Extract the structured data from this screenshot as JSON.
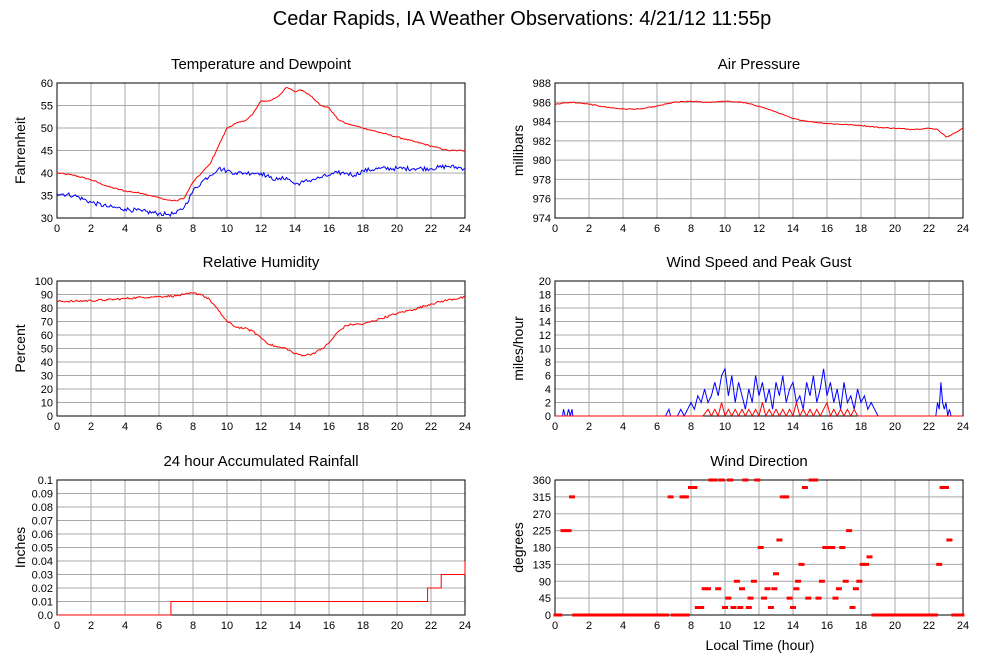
{
  "title": "Cedar Rapids, IA Weather Observations: 4/21/12 11:55p",
  "xlabel_bottom": "Local Time (hour)",
  "colors": {
    "red": "#ff0000",
    "blue": "#0000ff",
    "grid": "#a8a8a8",
    "frame": "#000000"
  },
  "chart_data": [
    {
      "id": "temp",
      "type": "line",
      "title": "Temperature and Dewpoint",
      "ylabel": "Fahrenheit",
      "xlim": [
        0,
        24
      ],
      "xticks": [
        0,
        2,
        4,
        6,
        8,
        10,
        12,
        14,
        16,
        18,
        20,
        22,
        24
      ],
      "ylim": [
        30,
        60
      ],
      "yticks": [
        30,
        35,
        40,
        45,
        50,
        55,
        60
      ],
      "series": [
        {
          "color": "#ff0000",
          "noise": 0.15,
          "x": [
            0,
            1,
            2,
            3,
            4,
            5,
            6,
            6.5,
            7,
            7.5,
            8,
            8.5,
            9,
            9.5,
            10,
            10.5,
            11,
            11.5,
            12,
            12.5,
            13,
            13.5,
            13.8,
            14,
            14.3,
            14.6,
            15,
            15.5,
            16,
            16.5,
            17,
            17.5,
            18,
            19,
            20,
            21,
            22,
            23,
            24
          ],
          "y": [
            40,
            39.5,
            38.5,
            37,
            36,
            35.5,
            34.5,
            34,
            33.8,
            34.5,
            38,
            40,
            42,
            46,
            50,
            51,
            51.5,
            53,
            56,
            56,
            57,
            59,
            58.5,
            58,
            58.5,
            58,
            57,
            55,
            54.5,
            52,
            51,
            50.5,
            50,
            49,
            48,
            47,
            46,
            45,
            45
          ]
        },
        {
          "color": "#0000ff",
          "noise": 0.5,
          "x": [
            0,
            1,
            2,
            3,
            4,
            5,
            6,
            6.5,
            7,
            7.5,
            8,
            8.5,
            9,
            9.5,
            10,
            10.5,
            11,
            11.5,
            12,
            12.5,
            13,
            13.5,
            14,
            14.5,
            15,
            15.5,
            16,
            16.5,
            17,
            17.5,
            18,
            19,
            20,
            21,
            22,
            23,
            24
          ],
          "y": [
            35.5,
            35,
            33.5,
            32.5,
            32,
            31.5,
            31,
            30.8,
            31,
            32.5,
            36,
            38,
            39.5,
            41,
            40.5,
            40,
            40,
            40,
            40,
            39,
            38.5,
            39,
            37.5,
            38,
            38.5,
            39,
            39.5,
            40,
            40,
            39.5,
            40.5,
            41,
            41,
            41,
            41,
            41.5,
            41
          ]
        }
      ]
    },
    {
      "id": "pressure",
      "type": "line",
      "title": "Air Pressure",
      "ylabel": "millibars",
      "xlim": [
        0,
        24
      ],
      "xticks": [
        0,
        2,
        4,
        6,
        8,
        10,
        12,
        14,
        16,
        18,
        20,
        22,
        24
      ],
      "ylim": [
        974,
        988
      ],
      "yticks": [
        974,
        976,
        978,
        980,
        982,
        984,
        986,
        988
      ],
      "series": [
        {
          "color": "#ff0000",
          "noise": 0.05,
          "x": [
            0,
            1,
            2,
            3,
            4,
            5,
            6,
            7,
            8,
            9,
            10,
            11,
            12,
            13,
            14,
            15,
            16,
            17,
            18,
            19,
            20,
            21,
            22,
            22.5,
            23,
            23.5,
            24
          ],
          "y": [
            985.8,
            986,
            985.8,
            985.5,
            985.3,
            985.3,
            985.6,
            986,
            986.1,
            986,
            986.1,
            986,
            985.6,
            985,
            984.3,
            984,
            983.8,
            983.7,
            983.6,
            983.4,
            983.3,
            983.2,
            983.3,
            983.2,
            982.4,
            982.8,
            983.3
          ]
        }
      ]
    },
    {
      "id": "humidity",
      "type": "line",
      "title": "Relative Humidity",
      "ylabel": "Percent",
      "xlim": [
        0,
        24
      ],
      "xticks": [
        0,
        2,
        4,
        6,
        8,
        10,
        12,
        14,
        16,
        18,
        20,
        22,
        24
      ],
      "ylim": [
        0,
        100
      ],
      "yticks": [
        0,
        10,
        20,
        30,
        40,
        50,
        60,
        70,
        80,
        90,
        100
      ],
      "series": [
        {
          "color": "#ff0000",
          "noise": 0.8,
          "x": [
            0,
            1,
            2,
            3,
            4,
            5,
            6,
            7,
            7.5,
            8,
            8.5,
            9,
            9.5,
            10,
            10.5,
            11,
            11.5,
            12,
            12.5,
            13,
            13.5,
            14,
            14.5,
            15,
            15.5,
            16,
            16.5,
            17,
            17.5,
            18,
            19,
            20,
            21,
            22,
            23,
            24
          ],
          "y": [
            85,
            85,
            85.5,
            86,
            87,
            88,
            88.5,
            89,
            90,
            91,
            90,
            86,
            78,
            70,
            66,
            65,
            63,
            58,
            53,
            51,
            50,
            46,
            45,
            46,
            49,
            54,
            62,
            67,
            68,
            68,
            72,
            76,
            79,
            83,
            86,
            88
          ]
        }
      ]
    },
    {
      "id": "wind",
      "type": "line",
      "title": "Wind Speed and Peak Gust",
      "ylabel": "miles/hour",
      "xlim": [
        0,
        24
      ],
      "xticks": [
        0,
        2,
        4,
        6,
        8,
        10,
        12,
        14,
        16,
        18,
        20,
        22,
        24
      ],
      "ylim": [
        0,
        20
      ],
      "yticks": [
        0,
        2,
        4,
        6,
        8,
        10,
        12,
        14,
        16,
        18,
        20
      ],
      "series": [
        {
          "color": "#0000ff",
          "noise": 0,
          "x": [
            0,
            0.45,
            0.5,
            0.6,
            0.7,
            0.8,
            0.9,
            1.0,
            1.05,
            1.1,
            6.5,
            6.7,
            6.8,
            6.9,
            7.2,
            7.4,
            7.6,
            7.8,
            8.0,
            8.2,
            8.4,
            8.6,
            8.8,
            9.0,
            9.2,
            9.4,
            9.6,
            9.8,
            10.0,
            10.2,
            10.4,
            10.6,
            10.8,
            11.0,
            11.2,
            11.4,
            11.6,
            11.8,
            12.0,
            12.2,
            12.4,
            12.6,
            12.8,
            13.0,
            13.2,
            13.4,
            13.6,
            13.8,
            14.0,
            14.2,
            14.4,
            14.6,
            14.8,
            15.0,
            15.2,
            15.4,
            15.6,
            15.8,
            16.0,
            16.2,
            16.4,
            16.6,
            16.8,
            17.0,
            17.2,
            17.4,
            17.6,
            17.8,
            18.0,
            18.2,
            18.4,
            18.6,
            18.8,
            19.0,
            22.4,
            22.5,
            22.6,
            22.7,
            22.8,
            22.9,
            23.0,
            23.1,
            23.2,
            23.3,
            24
          ],
          "y": [
            0,
            0,
            1,
            0,
            0,
            1,
            0,
            1,
            0,
            0,
            0,
            1,
            0,
            0,
            0,
            1,
            0,
            1,
            2,
            1,
            3,
            2,
            4,
            2,
            3,
            5,
            3,
            6,
            7,
            3,
            6,
            2,
            5,
            3,
            1,
            4,
            2,
            6,
            3,
            5,
            2,
            4,
            1,
            5,
            3,
            6,
            2,
            4,
            5,
            2,
            3,
            1,
            5,
            3,
            6,
            2,
            4,
            7,
            3,
            5,
            2,
            4,
            1,
            5,
            2,
            3,
            1,
            4,
            2,
            3,
            1,
            2,
            1,
            0,
            0,
            2,
            1,
            5,
            2,
            1,
            2,
            0,
            1,
            0,
            0
          ]
        },
        {
          "color": "#ff0000",
          "noise": 0,
          "x": [
            0,
            8.7,
            9.0,
            9.2,
            9.4,
            9.6,
            9.8,
            10.0,
            10.2,
            10.4,
            10.6,
            10.8,
            11.0,
            11.2,
            11.4,
            11.6,
            11.8,
            12.0,
            12.2,
            12.4,
            12.6,
            12.8,
            13.0,
            13.2,
            13.4,
            13.6,
            13.8,
            14.0,
            14.2,
            14.4,
            14.6,
            14.8,
            15.0,
            15.2,
            15.4,
            15.6,
            15.8,
            16.0,
            16.2,
            16.4,
            16.6,
            16.8,
            17.0,
            17.2,
            17.4,
            17.6,
            17.8,
            18.0,
            24
          ],
          "y": [
            0,
            0,
            1,
            0,
            1,
            0,
            2,
            0,
            1,
            0,
            1,
            0,
            1,
            0,
            1,
            0,
            1,
            0,
            2,
            0,
            1,
            0,
            1,
            0,
            1,
            0,
            1,
            0,
            2,
            0,
            1,
            0,
            1,
            0,
            1,
            0,
            1,
            2,
            0,
            1,
            0,
            1,
            0,
            1,
            0,
            1,
            0,
            0,
            0
          ]
        }
      ]
    },
    {
      "id": "rain",
      "type": "line",
      "title": "24 hour Accumulated Rainfall",
      "ylabel": "Inches",
      "xlim": [
        0,
        24
      ],
      "xticks": [
        0,
        2,
        4,
        6,
        8,
        10,
        12,
        14,
        16,
        18,
        20,
        22,
        24
      ],
      "ylim": [
        0,
        0.1
      ],
      "yticks": [
        0,
        0.01,
        0.02,
        0.03,
        0.04,
        0.05,
        0.06,
        0.07,
        0.08,
        0.09,
        0.1
      ],
      "ytick_labels": [
        "0.0",
        "0.01",
        "0.02",
        "0.03",
        "0.04",
        "0.05",
        "0.06",
        "0.07",
        "0.08",
        "0.09",
        "0.1"
      ],
      "series": [
        {
          "color": "#ff0000",
          "noise": 0,
          "step": true,
          "x": [
            0,
            6.7,
            21.8,
            22.1,
            22.6,
            24
          ],
          "y": [
            0,
            0.01,
            0.02,
            0.02,
            0.03,
            0.04
          ]
        }
      ]
    },
    {
      "id": "winddir",
      "type": "scatter",
      "title": "Wind Direction",
      "ylabel": "degrees",
      "xlabel": "Local Time (hour)",
      "xlim": [
        0,
        24
      ],
      "xticks": [
        0,
        2,
        4,
        6,
        8,
        10,
        12,
        14,
        16,
        18,
        20,
        22,
        24
      ],
      "ylim": [
        0,
        360
      ],
      "yticks": [
        0,
        45,
        90,
        135,
        180,
        225,
        270,
        315,
        360
      ],
      "series": [
        {
          "color": "#ff0000",
          "calm_ranges": [
            [
              0,
              0.4
            ],
            [
              1.1,
              6.7
            ],
            [
              6.9,
              7.9
            ],
            [
              18.7,
              22.5
            ],
            [
              23.4,
              24
            ]
          ],
          "x": [
            0.5,
            0.8,
            1.0,
            6.8,
            7.5,
            7.7,
            8.0,
            8.2,
            8.4,
            8.6,
            8.8,
            9.0,
            9.2,
            9.4,
            9.6,
            9.8,
            10.0,
            10.2,
            10.3,
            10.5,
            10.7,
            10.9,
            11.0,
            11.2,
            11.4,
            11.5,
            11.7,
            11.9,
            12.1,
            12.3,
            12.5,
            12.7,
            12.9,
            13.0,
            13.2,
            13.4,
            13.6,
            13.8,
            14.0,
            14.2,
            14.3,
            14.5,
            14.7,
            14.9,
            15.1,
            15.3,
            15.5,
            15.7,
            15.9,
            16.1,
            16.3,
            16.5,
            16.7,
            16.9,
            17.1,
            17.3,
            17.5,
            17.7,
            17.9,
            18.1,
            18.3,
            18.5,
            22.6,
            22.8,
            23.0,
            23.2
          ],
          "y": [
            225,
            225,
            315,
            315,
            315,
            315,
            340,
            340,
            20,
            20,
            70,
            70,
            360,
            360,
            70,
            360,
            20,
            45,
            360,
            20,
            90,
            20,
            70,
            360,
            20,
            45,
            90,
            360,
            180,
            45,
            70,
            20,
            70,
            110,
            200,
            315,
            315,
            45,
            20,
            70,
            90,
            135,
            340,
            45,
            360,
            360,
            45,
            90,
            180,
            180,
            180,
            45,
            70,
            180,
            90,
            225,
            20,
            70,
            90,
            135,
            135,
            155,
            135,
            340,
            340,
            200
          ]
        }
      ]
    }
  ]
}
